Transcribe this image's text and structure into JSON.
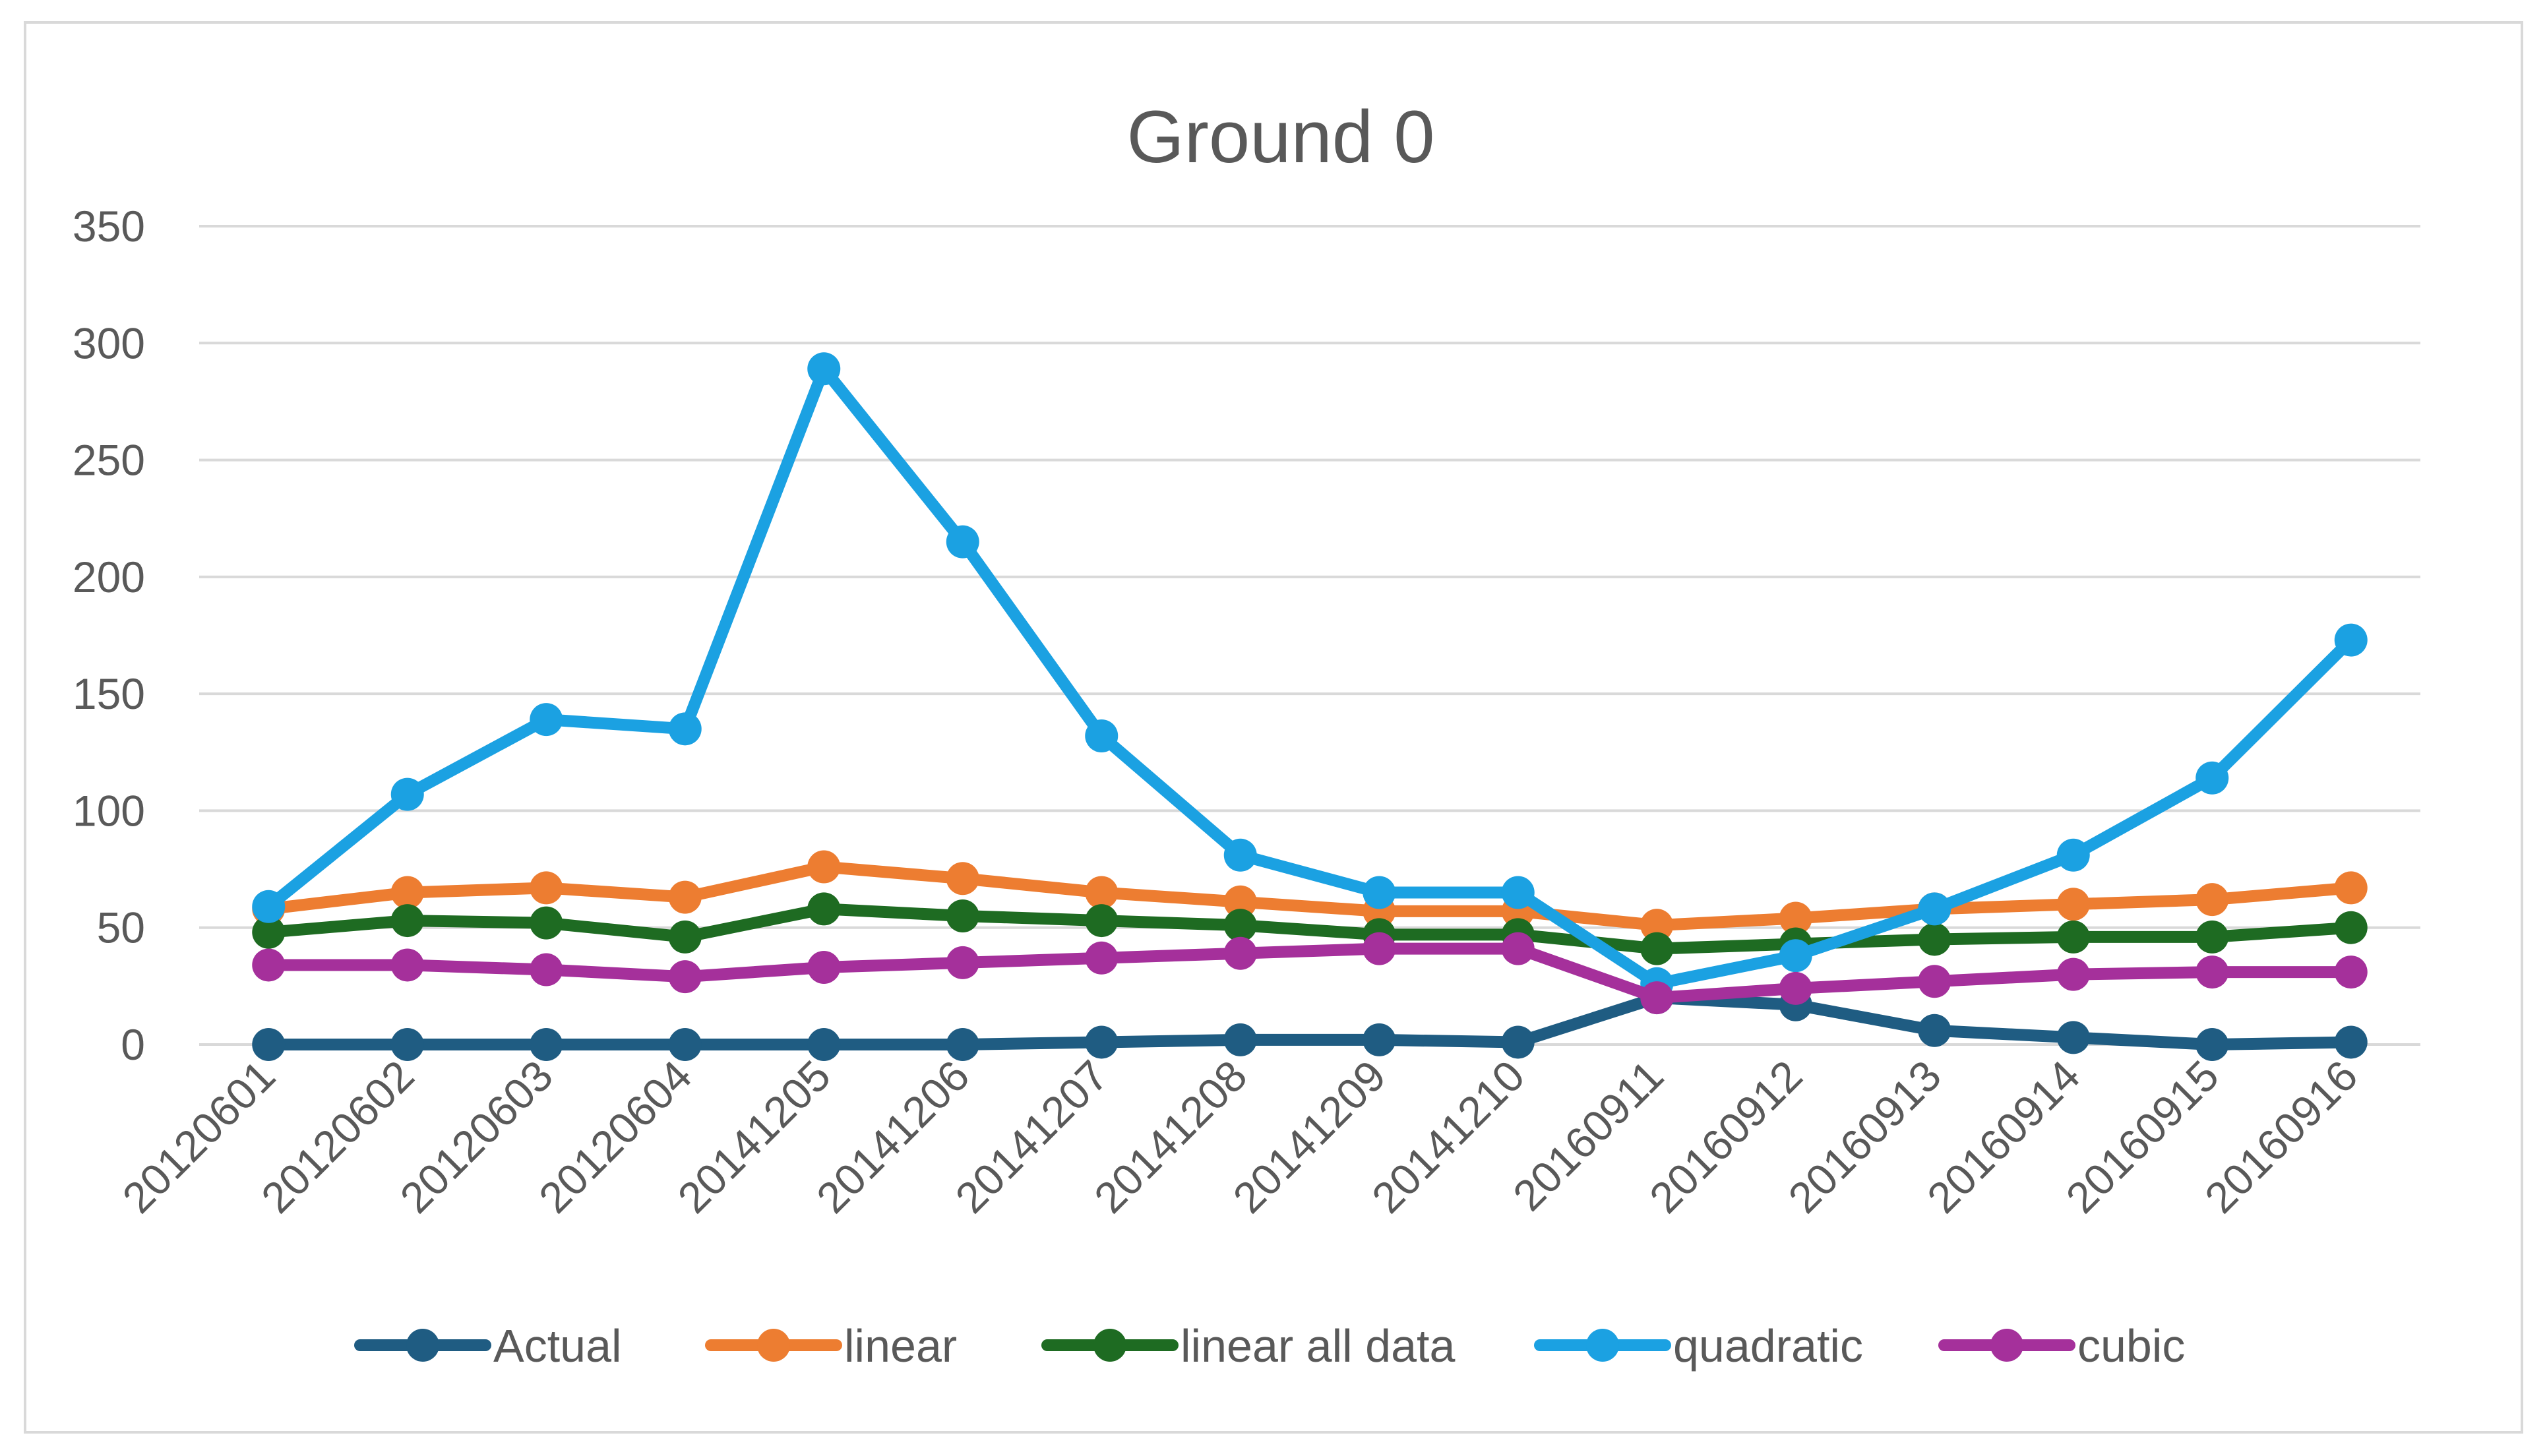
{
  "chart_data": {
    "type": "line",
    "title": "Ground 0",
    "xlabel": "",
    "ylabel": "",
    "ylim": [
      0,
      350
    ],
    "yticks": [
      0,
      50,
      100,
      150,
      200,
      250,
      300,
      350
    ],
    "grid": true,
    "legend_position": "bottom",
    "categories": [
      "20120601",
      "20120602",
      "20120603",
      "20120604",
      "20141205",
      "20141206",
      "20141207",
      "20141208",
      "20141209",
      "20141210",
      "20160911",
      "20160912",
      "20160913",
      "20160914",
      "20160915",
      "20160916"
    ],
    "series": [
      {
        "name": "Actual",
        "color": "#1f5c82",
        "values": [
          0,
          0,
          0,
          0,
          0,
          0,
          1,
          2,
          2,
          1,
          20,
          17,
          6,
          3,
          0,
          1
        ]
      },
      {
        "name": "linear",
        "color": "#ed7d31",
        "values": [
          58,
          65,
          67,
          63,
          76,
          71,
          65,
          61,
          57,
          57,
          51,
          54,
          58,
          60,
          62,
          67
        ]
      },
      {
        "name": "linear all data",
        "color": "#1e6b22",
        "values": [
          48,
          53,
          52,
          46,
          58,
          55,
          53,
          51,
          47,
          47,
          41,
          43,
          45,
          46,
          46,
          50
        ]
      },
      {
        "name": "quadratic",
        "color": "#1ba1e2",
        "values": [
          59,
          107,
          139,
          135,
          289,
          215,
          132,
          81,
          65,
          65,
          26,
          38,
          58,
          81,
          114,
          173
        ]
      },
      {
        "name": "cubic",
        "color": "#a5309b",
        "values": [
          34,
          34,
          32,
          29,
          33,
          35,
          37,
          39,
          41,
          41,
          20,
          24,
          27,
          30,
          31,
          31
        ]
      }
    ]
  }
}
